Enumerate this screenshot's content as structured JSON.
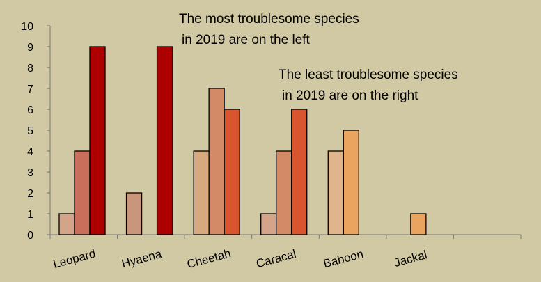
{
  "chart_data": {
    "type": "bar",
    "categories": [
      "Leopard",
      "Hyaena",
      "Cheetah",
      "Caracal",
      "Baboon",
      "Jackal",
      ""
    ],
    "series": [
      {
        "values": [
          1,
          2,
          4,
          1,
          4,
          0,
          0
        ],
        "color": "#d4a48a"
      },
      {
        "values": [
          4,
          0,
          7,
          4,
          5,
          1,
          0
        ],
        "color": "#c86e5b"
      },
      {
        "values": [
          9,
          9,
          6,
          6,
          0,
          0,
          0
        ],
        "color": "#ad0000"
      }
    ],
    "bar_colors": [
      [
        "#d4a48a",
        "#c86e5b",
        "#ad0000"
      ],
      [
        "#c9957c",
        null,
        "#ad0000"
      ],
      [
        "#d6a980",
        "#d38a66",
        "#d8552f"
      ],
      [
        "#d4a48a",
        "#d38a66",
        "#d8552f"
      ],
      [
        "#e0b48c",
        "#eba45f",
        null
      ],
      [
        null,
        "#eba45f",
        null
      ],
      [
        null,
        null,
        null
      ]
    ],
    "ylim": [
      0,
      10
    ],
    "yticks": [
      "0",
      "1",
      "2",
      "3",
      "4",
      "5",
      "6",
      "7",
      "8",
      "9",
      "10"
    ],
    "xlabel": "",
    "ylabel": "",
    "grid": false,
    "legend": "none",
    "annotations": [
      "The most troublesome species",
      "in 2019 are on the left",
      "The least troublesome species",
      "in 2019 are on the right"
    ]
  }
}
